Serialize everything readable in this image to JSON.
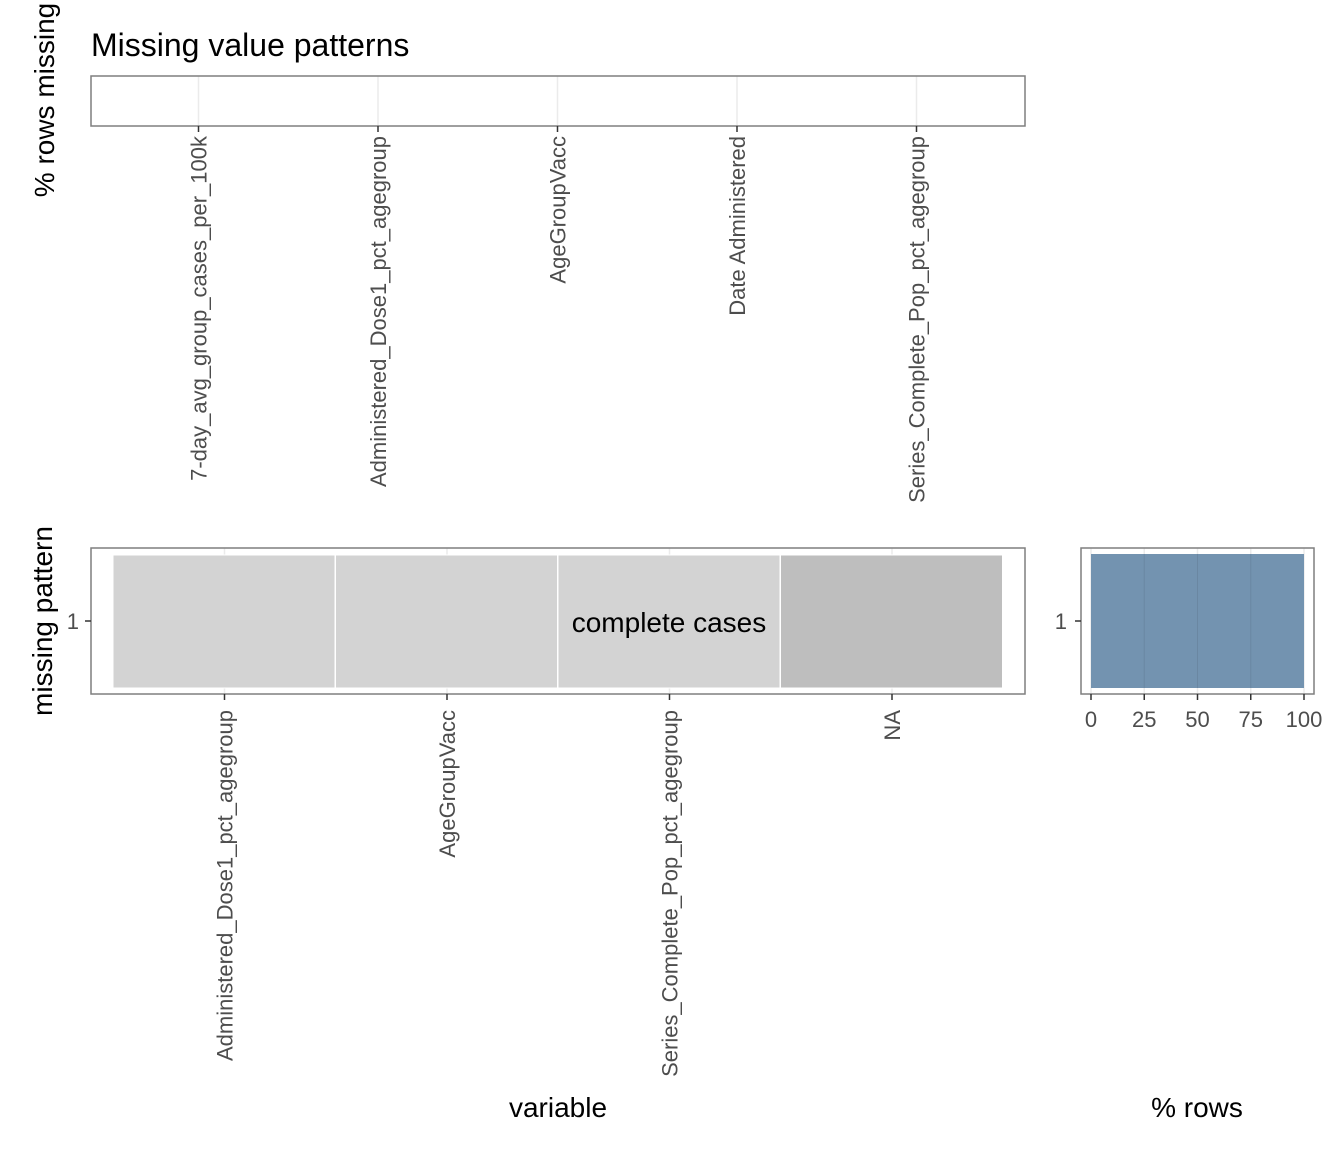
{
  "chart_data": [
    {
      "type": "bar",
      "panel": "top",
      "title": "Missing value patterns",
      "ylabel": "% rows missing",
      "categories": [
        "7-day_avg_group_cases_per_100k",
        "Administered_Dose1_pct_agegroup",
        "AgeGroupVacc",
        "Date Administered",
        "Series_Complete_Pop_pct_agegroup"
      ],
      "values": [
        0,
        0,
        0,
        0,
        0
      ],
      "grid": true
    },
    {
      "type": "heatmap",
      "panel": "main",
      "xlabel": "variable",
      "ylabel": "missing pattern",
      "x": [
        "Administered_Dose1_pct_agegroup",
        "AgeGroupVacc",
        "Series_Complete_Pop_pct_agegroup",
        "NA"
      ],
      "y": [
        "1"
      ],
      "cells": [
        {
          "x": "Administered_Dose1_pct_agegroup",
          "y": "1",
          "missing": false
        },
        {
          "x": "AgeGroupVacc",
          "y": "1",
          "missing": false
        },
        {
          "x": "Series_Complete_Pop_pct_agegroup",
          "y": "1",
          "missing": false
        },
        {
          "x": "NA",
          "y": "1",
          "missing": false
        }
      ],
      "annotation": "complete cases",
      "colors": {
        "present": "#d3d3d3",
        "last": "#bebebe"
      }
    },
    {
      "type": "bar",
      "panel": "right",
      "orientation": "horizontal",
      "xlabel": "% rows",
      "categories": [
        "1"
      ],
      "values": [
        100
      ],
      "xlim": [
        0,
        100
      ],
      "xticks": [
        0,
        25,
        50,
        75,
        100
      ],
      "color": "#7393b0",
      "grid": true
    }
  ]
}
